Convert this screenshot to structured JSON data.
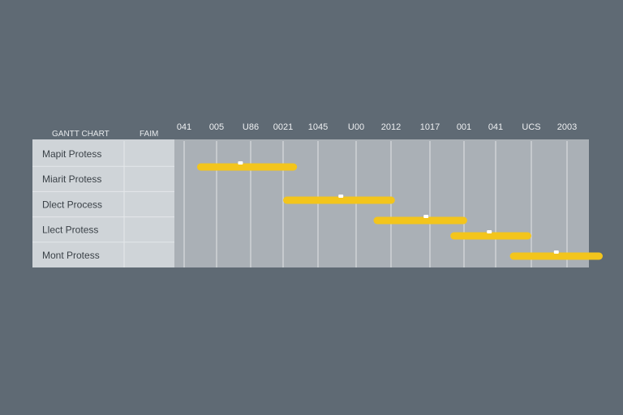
{
  "chart_data": {
    "type": "gantt",
    "title": "GANTT CHART",
    "column_header": "FAIM",
    "tick_labels": [
      "041",
      "005",
      "U86",
      "0021",
      "1045",
      "U00",
      "2012",
      "1017",
      "001",
      "041",
      "UCS",
      "2003"
    ],
    "tasks": [
      {
        "label": "Mapit Protess",
        "start": 0.4,
        "end": 3.4,
        "milestone": 1.7
      },
      {
        "label": "Miarit Protess",
        "start": 3.0,
        "end": 6.1,
        "milestone": 4.6
      },
      {
        "label": "Dlect Process",
        "start": 5.5,
        "end": 8.1,
        "milestone": 6.9
      },
      {
        "label": "Llect Protess",
        "start": 7.6,
        "end": 10.0,
        "milestone": 8.8
      },
      {
        "label": "Mont Protess",
        "start": 9.4,
        "end": 12.0,
        "milestone": 10.7
      }
    ],
    "bar_color": "#f3c51c",
    "milestone_color": "#ffffff",
    "grid": true
  }
}
